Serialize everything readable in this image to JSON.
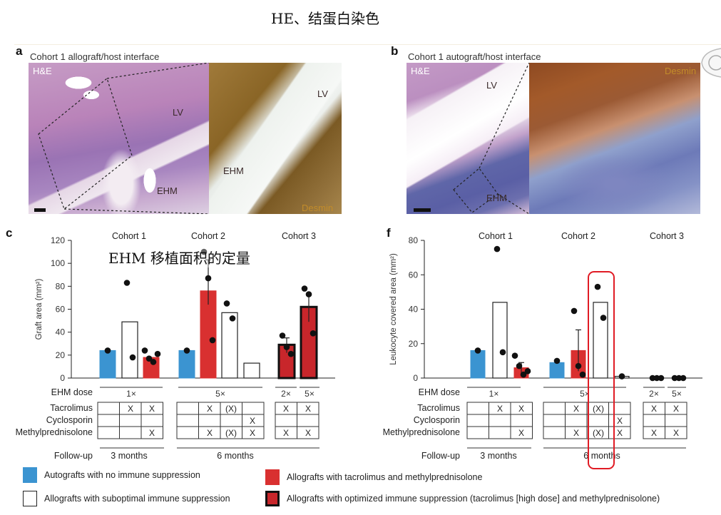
{
  "captions": {
    "top": "HE、结蛋白染色",
    "overlay": "EHM 移植面积的定量"
  },
  "panel_a": {
    "label": "a",
    "title": "Cohort 1 allograft/host interface",
    "stain_left": "H&E",
    "stain_right": "Desmin",
    "labels": {
      "lv_left": "LV",
      "ehm_left": "EHM",
      "lv_right": "LV",
      "ehm_right": "EHM"
    }
  },
  "panel_b": {
    "label": "b",
    "title": "Cohort 1 autograft/host interface",
    "stain_left": "H&E",
    "stain_right": "Desmin",
    "labels": {
      "lv_left": "LV",
      "ehm_left": "EHM"
    }
  },
  "colors": {
    "autograft_blue": "#3b94d1",
    "allograft_red": "#d93030",
    "optimized_dark": "#c8262b",
    "highlight_red": "#e01b24"
  },
  "chart_data": [
    {
      "panel": "c",
      "type": "bar",
      "ylabel": "Graft area (mm²)",
      "ylim": [
        0,
        120
      ],
      "yticks": [
        "0",
        "20",
        "40",
        "60",
        "80",
        "100",
        "120"
      ],
      "cohorts": [
        "Cohort 1",
        "Cohort 2",
        "Cohort 3"
      ],
      "bars": [
        {
          "group": "Autograft",
          "cohort": "Cohort 1",
          "value": 24,
          "points": [
            24
          ]
        },
        {
          "group": "Suboptimal",
          "cohort": "Cohort 1",
          "value": 49,
          "points": [
            83,
            18
          ]
        },
        {
          "group": "Tac+MP",
          "cohort": "Cohort 1",
          "value": 18,
          "points": [
            24,
            17,
            14,
            21
          ]
        },
        {
          "group": "Autograft",
          "cohort": "Cohort 2",
          "value": 24,
          "points": [
            24
          ]
        },
        {
          "group": "Tac+MP",
          "cohort": "Cohort 2",
          "value": 76,
          "points": [
            110,
            87,
            33
          ],
          "error": [
            64,
            103
          ]
        },
        {
          "group": "Suboptimal",
          "cohort": "Cohort 2",
          "value": 57,
          "points": [
            65,
            52
          ]
        },
        {
          "group": "Suboptimal",
          "cohort": "Cohort 2",
          "value": 13,
          "points": []
        },
        {
          "group": "Optimized",
          "cohort": "Cohort 3",
          "value": 29,
          "points": [
            37,
            27,
            21
          ],
          "error": [
            22,
            35
          ]
        },
        {
          "group": "Optimized",
          "cohort": "Cohort 3",
          "value": 62,
          "points": [
            78,
            73,
            39
          ],
          "error": [
            49,
            73
          ]
        }
      ]
    },
    {
      "panel": "f",
      "type": "bar",
      "ylabel": "Leukocyte covered area (mm²)",
      "ylim": [
        0,
        80
      ],
      "yticks": [
        "0",
        "20",
        "40",
        "60",
        "80"
      ],
      "cohorts": [
        "Cohort 1",
        "Cohort 2",
        "Cohort 3"
      ],
      "bars": [
        {
          "group": "Autograft",
          "cohort": "Cohort 1",
          "value": 16,
          "points": [
            16
          ]
        },
        {
          "group": "Suboptimal",
          "cohort": "Cohort 1",
          "value": 44,
          "points": [
            75,
            15
          ]
        },
        {
          "group": "Tac+MP",
          "cohort": "Cohort 1",
          "value": 6,
          "points": [
            13,
            7,
            2,
            4
          ],
          "error": [
            2,
            9
          ]
        },
        {
          "group": "Autograft",
          "cohort": "Cohort 2",
          "value": 9,
          "points": [
            10
          ]
        },
        {
          "group": "Tac+MP",
          "cohort": "Cohort 2",
          "value": 16,
          "points": [
            39,
            7,
            2
          ],
          "error": [
            4,
            28
          ]
        },
        {
          "group": "Suboptimal",
          "cohort": "Cohort 2",
          "value": 44,
          "points": [
            53,
            35
          ]
        },
        {
          "group": "Suboptimal",
          "cohort": "Cohort 2",
          "value": 1,
          "points": [
            1
          ]
        },
        {
          "group": "Optimized",
          "cohort": "Cohort 3",
          "value": 0,
          "points": [
            0,
            0,
            0
          ]
        },
        {
          "group": "Optimized",
          "cohort": "Cohort 3",
          "value": 0,
          "points": [
            0,
            0,
            0
          ]
        }
      ]
    }
  ],
  "table": {
    "dose_label": "EHM dose",
    "rows": [
      "Tacrolimus",
      "Cyclosporin",
      "Methylprednisolone"
    ],
    "followup_label": "Follow-up",
    "doses": [
      "1×",
      "5×",
      "2×",
      "5×"
    ],
    "followups": [
      "3 months",
      "6 months"
    ],
    "marks": {
      "x": "X",
      "xp": "(X)"
    }
  },
  "legend": {
    "autograft": "Autografts with no immune suppression",
    "suboptimal": "Allografts with suboptimal immune suppression",
    "tacmp": "Allografts with tacrolimus and methylprednisolone",
    "optimized": "Allografts with optimized immune suppression (tacrolimus [high dose] and methylprednisolone)"
  }
}
